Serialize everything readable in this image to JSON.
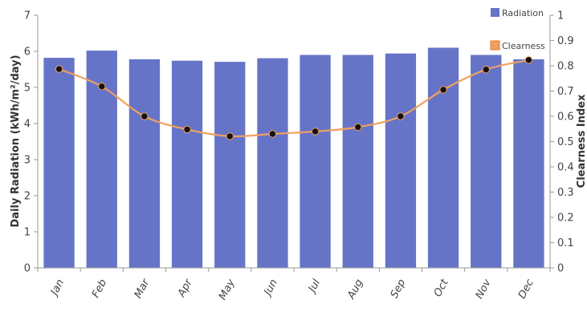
{
  "chart_data": {
    "type": "bar",
    "categories": [
      "Jan",
      "Feb",
      "Mar",
      "Apr",
      "May",
      "Jun",
      "Jul",
      "Aug",
      "Sep",
      "Oct",
      "Nov",
      "Dec"
    ],
    "series": [
      {
        "name": "Radiation",
        "type": "bar",
        "axis": "left",
        "color": "#6674c8",
        "values": [
          5.82,
          6.02,
          5.78,
          5.74,
          5.71,
          5.81,
          5.9,
          5.9,
          5.94,
          6.1,
          5.9,
          5.78
        ]
      },
      {
        "name": "Clearness",
        "type": "line",
        "axis": "right",
        "color": "#f0a060",
        "values": [
          0.787,
          0.718,
          0.6,
          0.548,
          0.521,
          0.53,
          0.54,
          0.557,
          0.6,
          0.705,
          0.785,
          0.823
        ]
      }
    ],
    "ylabel": "Daily Radiation (kWh/m²/day)",
    "y2label": "Clearness Index",
    "ylim": [
      0,
      7
    ],
    "y2lim": [
      0,
      1
    ],
    "yticks": [
      "0",
      "1",
      "2",
      "3",
      "4",
      "5",
      "6",
      "7"
    ],
    "y2ticks": [
      "0",
      "0.1",
      "0.2",
      "0.3",
      "0.4",
      "0.5",
      "0.6",
      "0.7",
      "0.8",
      "0.9",
      "1"
    ],
    "grid": false,
    "legend_position": "top-right"
  }
}
